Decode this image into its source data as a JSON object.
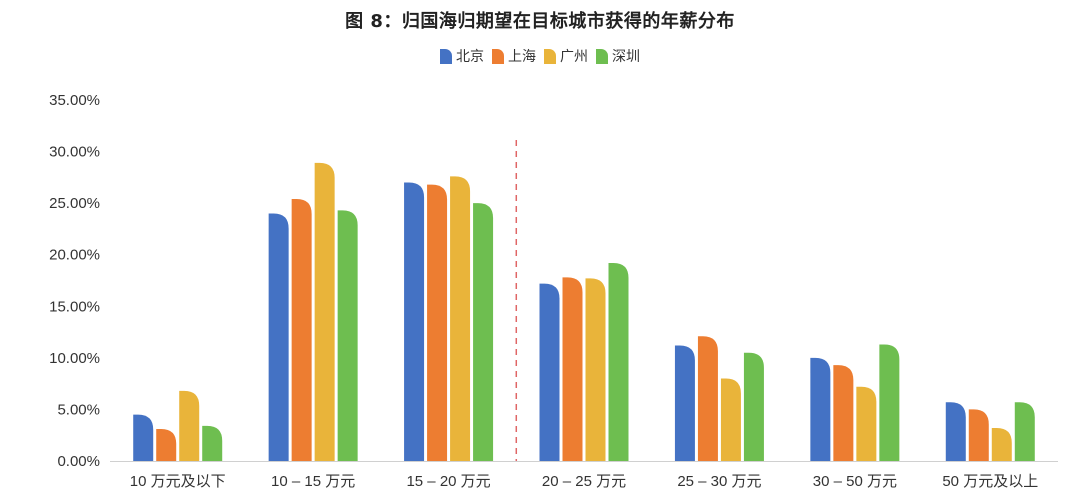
{
  "title": "图 8：归国海归期望在目标城市获得的年薪分布",
  "legend": {
    "items": [
      {
        "label": "北京",
        "color": "#4472C4"
      },
      {
        "label": "上海",
        "color": "#ED7D31"
      },
      {
        "label": "广州",
        "color": "#E9B43A"
      },
      {
        "label": "深圳",
        "color": "#6EBE50"
      }
    ]
  },
  "chart_data": {
    "type": "bar",
    "title": "图 8：归国海归期望在目标城市获得的年薪分布",
    "xlabel": "",
    "ylabel": "",
    "ylim": [
      0,
      0.35
    ],
    "y_ticks": [
      "0.00%",
      "5.00%",
      "10.00%",
      "15.00%",
      "20.00%",
      "25.00%",
      "30.00%",
      "35.00%"
    ],
    "grid": false,
    "legend_position": "top",
    "divider_after_category": 2,
    "categories": [
      "10 万元及以下",
      "10 – 15 万元",
      "15 – 20 万元",
      "20 – 25 万元",
      "25 – 30 万元",
      "30 – 50 万元",
      "50 万元及以上"
    ],
    "series": [
      {
        "name": "北京",
        "color": "#4472C4",
        "values": [
          0.045,
          0.24,
          0.27,
          0.172,
          0.112,
          0.1,
          0.057
        ]
      },
      {
        "name": "上海",
        "color": "#ED7D31",
        "values": [
          0.031,
          0.254,
          0.268,
          0.178,
          0.121,
          0.093,
          0.05
        ]
      },
      {
        "name": "广州",
        "color": "#E9B43A",
        "values": [
          0.068,
          0.289,
          0.276,
          0.177,
          0.08,
          0.072,
          0.032
        ]
      },
      {
        "name": "深圳",
        "color": "#6EBE50",
        "values": [
          0.034,
          0.243,
          0.25,
          0.192,
          0.105,
          0.113,
          0.057
        ]
      }
    ]
  }
}
